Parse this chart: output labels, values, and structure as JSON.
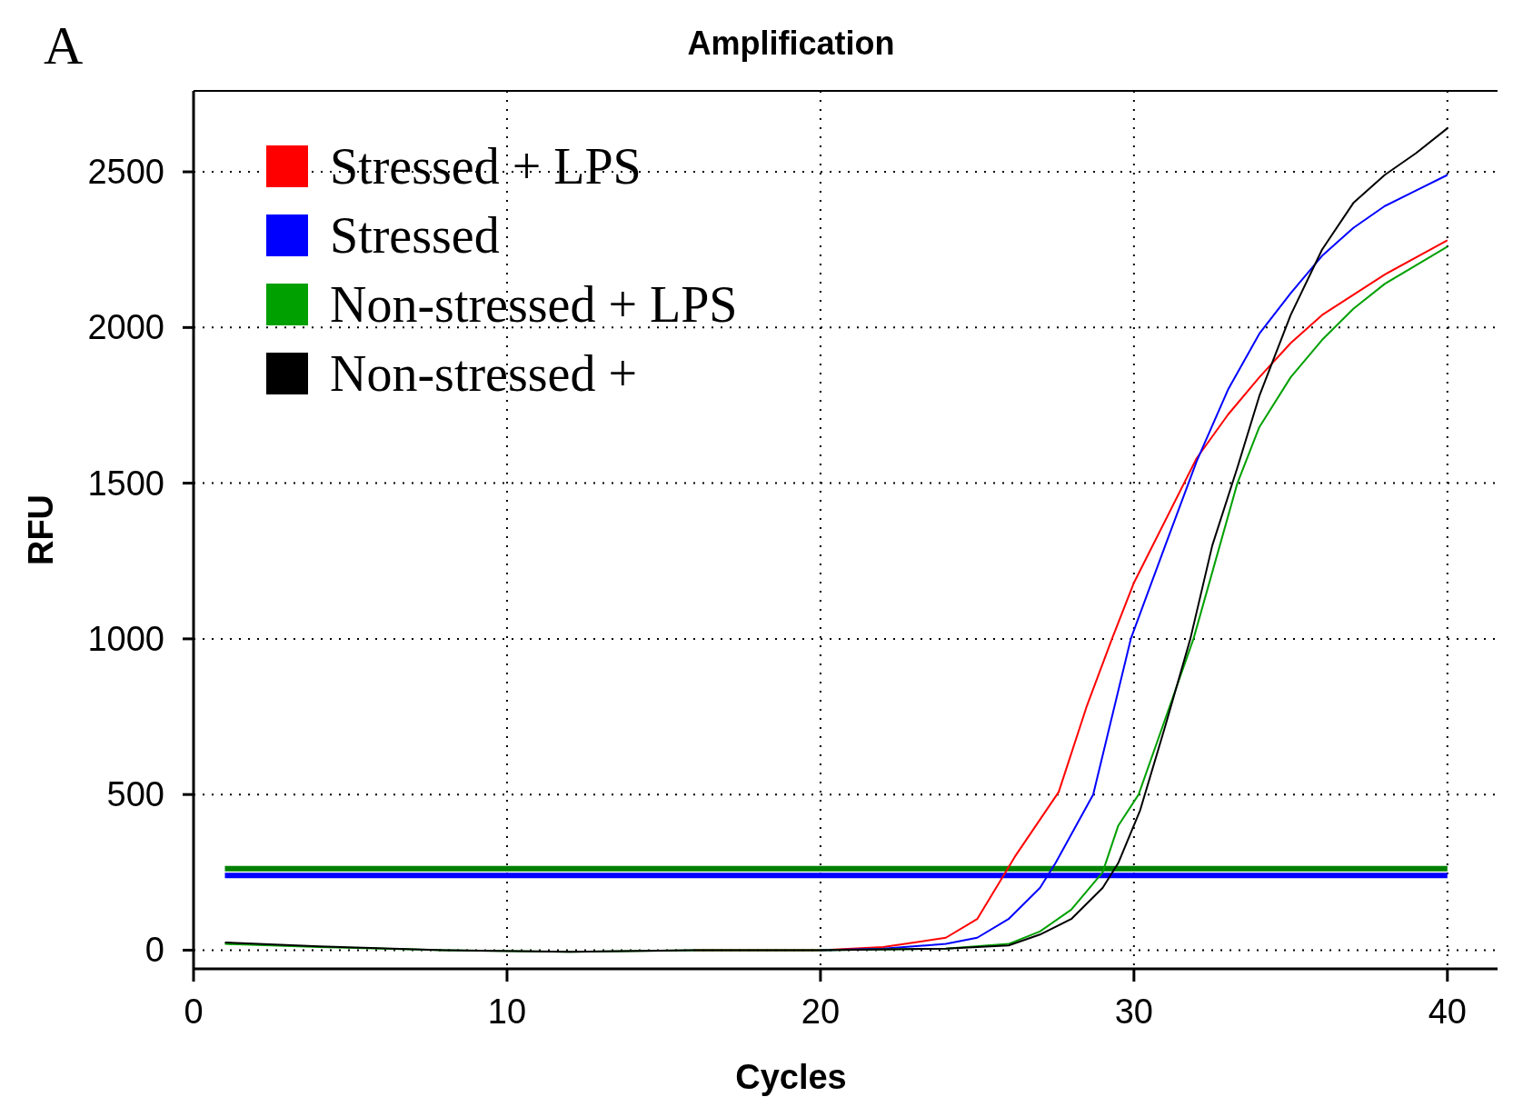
{
  "chart_data": {
    "type": "line",
    "title": "Amplification",
    "xlabel": "Cycles",
    "ylabel": "RFU",
    "annotations": [
      "A"
    ],
    "xlim": [
      0,
      41.6
    ],
    "ylim": [
      -60,
      2760
    ],
    "xticks": [
      0,
      10,
      20,
      30,
      40
    ],
    "yticks": [
      0,
      500,
      1000,
      1500,
      2000,
      2500
    ],
    "grid": true,
    "legend": "top left",
    "line_style": "solid",
    "marker": "none",
    "series": [
      {
        "name": "Stressed + LPS",
        "color": "#ff0000",
        "x": [
          16,
          20,
          22,
          24,
          25,
          26.2,
          27.6,
          28.5,
          29.3,
          30,
          31,
          32,
          33,
          34,
          35,
          36,
          38,
          40
        ],
        "values": [
          0,
          0,
          10,
          40,
          100,
          300,
          508,
          785,
          1000,
          1180,
          1380,
          1580,
          1720,
          1840,
          1950,
          2040,
          2170,
          2280
        ]
      },
      {
        "name": "Stressed",
        "color": "#0000ff",
        "x": [
          20,
          22,
          24,
          25,
          26,
          27,
          27.5,
          28.7,
          29.9,
          31,
          32,
          33,
          34,
          35,
          36,
          37,
          38,
          39,
          40
        ],
        "values": [
          0,
          5,
          20,
          40,
          100,
          200,
          280,
          500,
          1000,
          1300,
          1570,
          1800,
          1980,
          2110,
          2230,
          2320,
          2390,
          2440,
          2490
        ]
      },
      {
        "name": "Non-stressed + LPS",
        "color": "#00a000",
        "x": [
          1,
          4,
          8,
          12,
          16,
          20,
          24,
          26,
          27,
          28,
          29,
          29.5,
          30.15,
          31.9,
          33.3,
          34,
          35,
          36,
          37,
          38,
          39,
          40
        ],
        "values": [
          20,
          10,
          0,
          -5,
          0,
          0,
          5,
          20,
          60,
          130,
          250,
          400,
          500,
          1000,
          1500,
          1680,
          1840,
          1960,
          2060,
          2140,
          2200,
          2260
        ]
      },
      {
        "name": "Non-stressed +",
        "color": "#000000",
        "x": [
          1,
          4,
          8,
          12,
          16,
          20,
          24,
          26,
          27,
          28,
          29,
          29.5,
          30.2,
          31,
          31.8,
          32.5,
          33.3,
          34,
          35,
          36,
          37,
          38,
          39,
          40
        ],
        "values": [
          25,
          12,
          0,
          -5,
          0,
          0,
          5,
          15,
          50,
          100,
          200,
          280,
          450,
          720,
          1000,
          1300,
          1550,
          1780,
          2040,
          2250,
          2400,
          2490,
          2560,
          2640
        ]
      }
    ],
    "ref_lines": [
      {
        "axis": "y",
        "value": 262,
        "color": "#008000"
      },
      {
        "axis": "y",
        "value": 240,
        "color": "#0000ff"
      }
    ]
  }
}
